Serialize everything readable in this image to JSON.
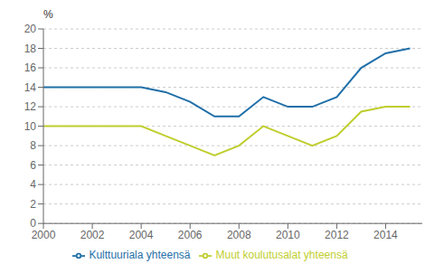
{
  "chart_data": {
    "type": "line",
    "ylabel": "%",
    "x": [
      2000,
      2001,
      2002,
      2003,
      2004,
      2005,
      2006,
      2007,
      2008,
      2009,
      2010,
      2011,
      2012,
      2013,
      2014,
      2015
    ],
    "series": [
      {
        "name": "Kulttuuriala yhteensä",
        "color": "#1f6fa8",
        "values": [
          14.0,
          14.0,
          14.0,
          14.0,
          14.0,
          13.5,
          12.5,
          11.0,
          11.0,
          13.0,
          12.0,
          12.0,
          13.0,
          16.0,
          17.5,
          18.0
        ]
      },
      {
        "name": "Muut koulutusalat yhteensä",
        "color": "#bfce2e",
        "values": [
          10.0,
          10.0,
          10.0,
          10.0,
          10.0,
          9.0,
          8.0,
          7.0,
          8.0,
          10.0,
          9.0,
          8.0,
          9.0,
          11.5,
          12.0,
          12.0
        ]
      }
    ],
    "xlim": [
      2000,
      2015.5
    ],
    "xticks": [
      2000,
      2002,
      2004,
      2006,
      2008,
      2010,
      2012,
      2014
    ],
    "ylim": [
      0,
      20
    ],
    "yticks": [
      0,
      2,
      4,
      6,
      8,
      10,
      12,
      14,
      16,
      18,
      20
    ],
    "grid": "y",
    "legend": "bottom"
  }
}
